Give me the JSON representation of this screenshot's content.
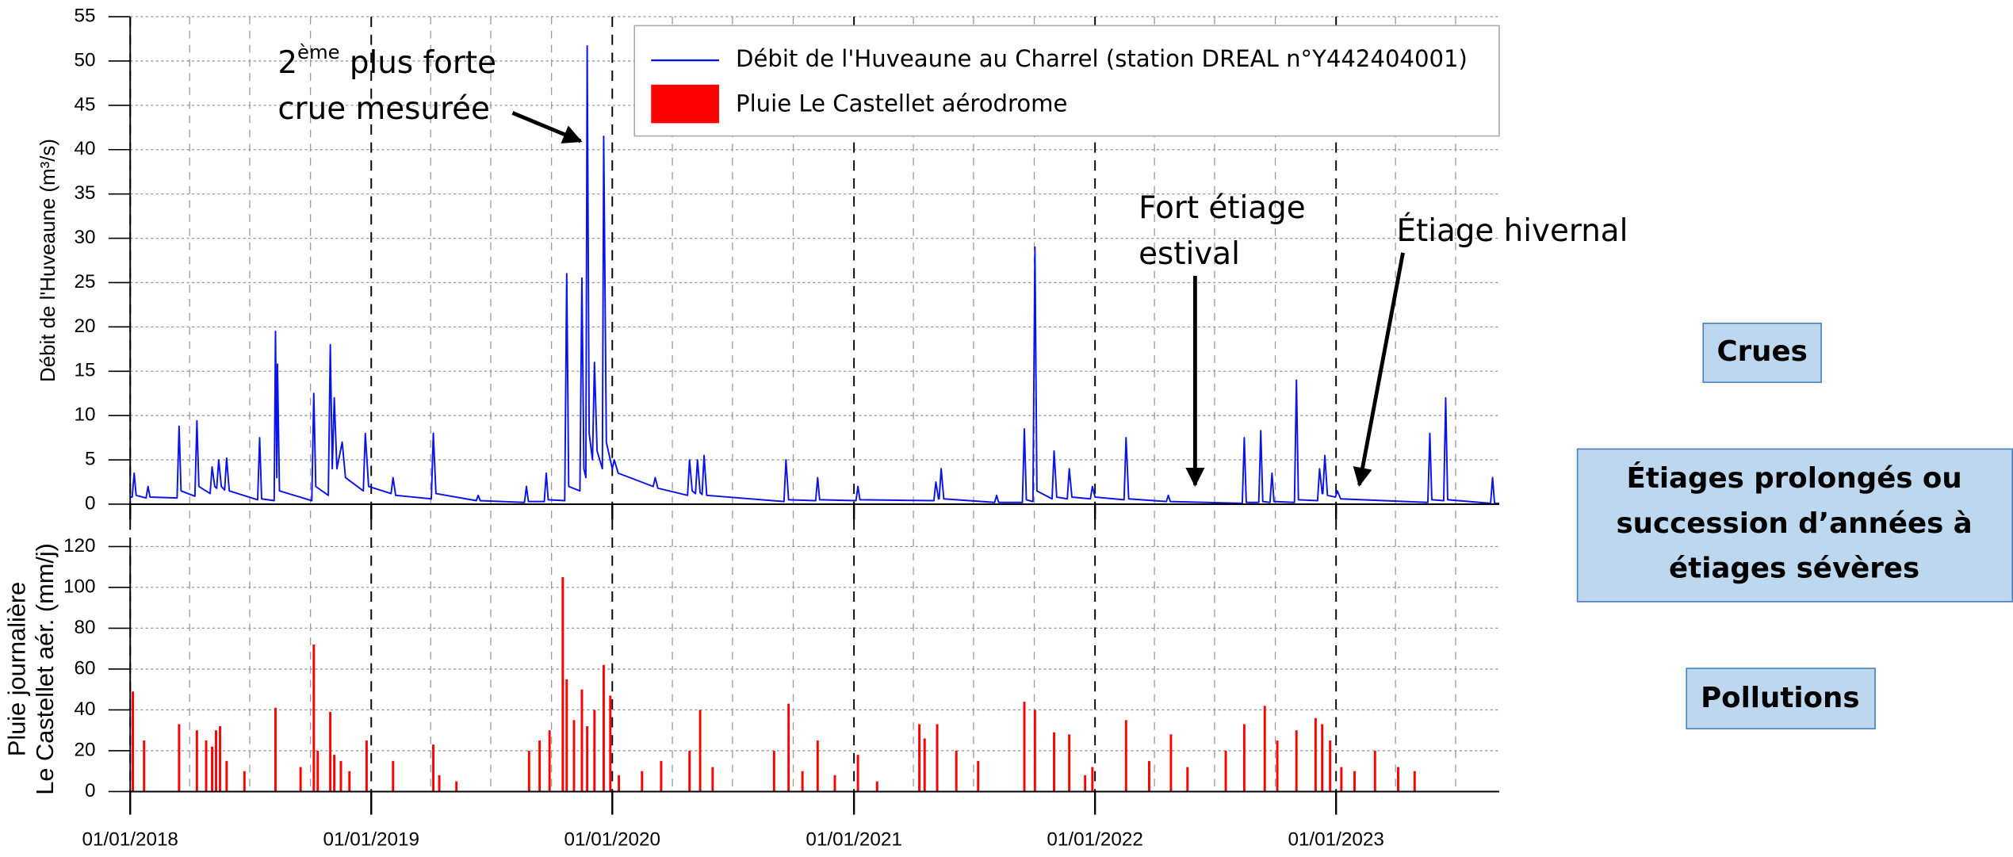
{
  "chart_data": [
    {
      "type": "line",
      "ylabel": "Débit de l'Huveaune (m³/s)",
      "xlim": [
        "2018-01-01",
        "2023-09-05"
      ],
      "ylim": [
        0,
        55
      ],
      "yticks": [
        0,
        5,
        10,
        15,
        20,
        25,
        30,
        35,
        40,
        45,
        50,
        55
      ],
      "grid": true,
      "x": [
        "2018-01-01",
        "2018-01-04",
        "2018-01-07",
        "2018-01-10",
        "2018-01-25",
        "2018-01-28",
        "2018-01-31",
        "2018-03-13",
        "2018-03-16",
        "2018-03-19",
        "2018-04-09",
        "2018-04-12",
        "2018-04-15",
        "2018-05-02",
        "2018-05-05",
        "2018-05-09",
        "2018-05-12",
        "2018-05-15",
        "2018-05-19",
        "2018-05-24",
        "2018-05-27",
        "2018-05-31",
        "2018-07-13",
        "2018-07-16",
        "2018-07-19",
        "2018-08-07",
        "2018-08-09",
        "2018-08-11",
        "2018-08-12",
        "2018-08-15",
        "2018-10-03",
        "2018-10-06",
        "2018-10-09",
        "2018-10-28",
        "2018-10-31",
        "2018-11-03",
        "2018-11-06",
        "2018-11-10",
        "2018-11-18",
        "2018-11-23",
        "2018-12-20",
        "2018-12-23",
        "2018-12-28",
        "2019-01-31",
        "2019-02-03",
        "2019-02-07",
        "2019-04-02",
        "2019-04-05",
        "2019-04-09",
        "2019-06-09",
        "2019-06-12",
        "2019-06-15",
        "2019-08-21",
        "2019-08-24",
        "2019-08-27",
        "2019-09-20",
        "2019-09-23",
        "2019-09-26",
        "2019-10-21",
        "2019-10-24",
        "2019-10-27",
        "2019-11-13",
        "2019-11-16",
        "2019-11-19",
        "2019-11-22",
        "2019-11-24",
        "2019-11-27",
        "2019-12-02",
        "2019-12-05",
        "2019-12-09",
        "2019-12-17",
        "2019-12-19",
        "2019-12-23",
        "2020-01-01",
        "2020-01-04",
        "2020-01-10",
        "2020-03-03",
        "2020-03-06",
        "2020-03-10",
        "2020-04-24",
        "2020-04-27",
        "2020-05-01",
        "2020-05-06",
        "2020-05-09",
        "2020-05-13",
        "2020-05-16",
        "2020-05-19",
        "2020-05-23",
        "2020-09-17",
        "2020-09-20",
        "2020-09-24",
        "2020-11-04",
        "2020-11-07",
        "2020-11-10",
        "2021-01-04",
        "2021-01-07",
        "2021-01-10",
        "2021-05-02",
        "2021-05-05",
        "2021-05-09",
        "2021-05-10",
        "2021-05-13",
        "2021-05-17",
        "2021-08-02",
        "2021-08-05",
        "2021-08-08",
        "2021-09-13",
        "2021-09-16",
        "2021-09-19",
        "2021-09-29",
        "2021-10-02",
        "2021-10-05",
        "2021-10-28",
        "2021-10-31",
        "2021-11-04",
        "2021-11-20",
        "2021-11-23",
        "2021-11-27",
        "2021-12-25",
        "2021-12-28",
        "2022-01-01",
        "2022-02-14",
        "2022-02-17",
        "2022-02-21",
        "2022-04-19",
        "2022-04-22",
        "2022-04-25",
        "2022-08-12",
        "2022-08-15",
        "2022-08-18",
        "2022-09-06",
        "2022-09-09",
        "2022-09-12",
        "2022-09-23",
        "2022-09-26",
        "2022-09-29",
        "2022-10-30",
        "2022-11-02",
        "2022-11-05",
        "2022-12-04",
        "2022-12-07",
        "2022-12-11",
        "2022-12-12",
        "2022-12-15",
        "2022-12-19",
        "2022-12-31",
        "2023-01-03",
        "2023-01-08",
        "2023-05-20",
        "2023-05-23",
        "2023-05-26",
        "2023-06-13",
        "2023-06-16",
        "2023-06-19",
        "2023-08-23",
        "2023-08-26",
        "2023-08-29",
        "2023-09-05"
      ],
      "series": [
        {
          "name": "Débit de l'Huveaune au Charrel (station DREAL n°Y442404001)",
          "color": "#0a14e6",
          "values": [
            0.8,
            0.8,
            3.5,
            1.0,
            0.7,
            2,
            0.8,
            0.7,
            8.8,
            1.5,
            0.9,
            9.4,
            2,
            1.2,
            4.2,
            2,
            1.8,
            5,
            2,
            1.6,
            5.2,
            1.5,
            0.5,
            7.5,
            0.6,
            0.4,
            19.5,
            3,
            15.8,
            1.5,
            0.4,
            12.5,
            2,
            1,
            18,
            4,
            12,
            4,
            7,
            3,
            1.5,
            8,
            2,
            1.2,
            3,
            1,
            0.6,
            8,
            1.2,
            0.4,
            1,
            0.4,
            0.2,
            2,
            0.3,
            0.3,
            3.5,
            0.5,
            0.4,
            26,
            2,
            1.5,
            25.5,
            4,
            3,
            51.7,
            8,
            5,
            16,
            6,
            4,
            41.5,
            7,
            4,
            5,
            3.5,
            2,
            3,
            1.8,
            1,
            5,
            1.5,
            1.2,
            5,
            1.3,
            1.1,
            5.5,
            1,
            0.3,
            5,
            0.5,
            0.4,
            3,
            0.5,
            0.4,
            2,
            0.5,
            0.4,
            2.5,
            0.6,
            0.6,
            4,
            0.6,
            0.2,
            1,
            0.2,
            0.2,
            8.5,
            0.5,
            0.3,
            29,
            1.5,
            0.6,
            6,
            0.8,
            0.6,
            4,
            0.8,
            0.6,
            2,
            0.8,
            0.5,
            7.5,
            0.6,
            0.3,
            1,
            0.3,
            0.1,
            7.5,
            0.2,
            0.2,
            8.3,
            0.3,
            0.2,
            3.5,
            0.3,
            0.2,
            14,
            0.5,
            0.4,
            4,
            1.2,
            1.2,
            5.5,
            1,
            0.8,
            1.5,
            0.6,
            0.2,
            8,
            0.5,
            0.4,
            12,
            0.5,
            0.1,
            3,
            0.1,
            0.1
          ]
        }
      ],
      "annotations": [
        {
          "lines": [
            [
              {
                "text": "2"
              },
              {
                "text": "ème",
                "sup": true
              },
              {
                "text": " plus forte"
              }
            ],
            [
              {
                "text": "crue mesurée"
              }
            ]
          ]
        },
        {
          "lines": [
            [
              {
                "text": "Fort étiage"
              }
            ],
            [
              {
                "text": "estival"
              }
            ]
          ]
        },
        {
          "lines": [
            [
              {
                "text": "Étiage hivernal"
              }
            ]
          ]
        }
      ]
    },
    {
      "type": "bar",
      "ylabel": [
        "Pluie journalière",
        "Le Castellet aér. (mm/j)"
      ],
      "xlim": [
        "2018-01-01",
        "2023-09-05"
      ],
      "ylim": [
        0,
        120
      ],
      "yticks": [
        0,
        20,
        40,
        60,
        80,
        100,
        120
      ],
      "grid": true,
      "xticks": [
        {
          "value": "2018-01-01",
          "label": "01/01/2018"
        },
        {
          "value": "2019-01-01",
          "label": "01/01/2019"
        },
        {
          "value": "2020-01-01",
          "label": "01/01/2020"
        },
        {
          "value": "2021-01-01",
          "label": "01/01/2021"
        },
        {
          "value": "2022-01-01",
          "label": "01/01/2022"
        },
        {
          "value": "2023-01-01",
          "label": "01/01/2023"
        }
      ],
      "xticks_minor": [
        "2018-04-01",
        "2018-07-01",
        "2018-10-01",
        "2019-04-01",
        "2019-07-01",
        "2019-10-01",
        "2020-04-01",
        "2020-07-01",
        "2020-10-01",
        "2021-04-01",
        "2021-07-01",
        "2021-10-01",
        "2022-04-01",
        "2022-07-01",
        "2022-10-01",
        "2023-04-01",
        "2023-07-01"
      ],
      "x": [
        "2018-01-05",
        "2018-01-22",
        "2018-03-16",
        "2018-04-12",
        "2018-04-26",
        "2018-05-05",
        "2018-05-11",
        "2018-05-17",
        "2018-05-27",
        "2018-06-23",
        "2018-08-09",
        "2018-09-16",
        "2018-10-06",
        "2018-10-12",
        "2018-10-31",
        "2018-11-06",
        "2018-11-16",
        "2018-11-29",
        "2018-12-25",
        "2019-02-03",
        "2019-04-05",
        "2019-04-14",
        "2019-05-10",
        "2019-08-28",
        "2019-09-13",
        "2019-09-28",
        "2019-10-18",
        "2019-10-24",
        "2019-11-04",
        "2019-11-16",
        "2019-11-24",
        "2019-12-05",
        "2019-12-19",
        "2019-12-29",
        "2020-01-11",
        "2020-02-15",
        "2020-03-15",
        "2020-04-27",
        "2020-05-13",
        "2020-06-01",
        "2020-09-02",
        "2020-09-24",
        "2020-10-15",
        "2020-11-07",
        "2020-12-03",
        "2021-01-07",
        "2021-02-05",
        "2021-04-10",
        "2021-04-18",
        "2021-05-07",
        "2021-06-05",
        "2021-07-08",
        "2021-09-16",
        "2021-10-02",
        "2021-10-31",
        "2021-11-23",
        "2021-12-17",
        "2021-12-28",
        "2022-02-17",
        "2022-03-24",
        "2022-04-26",
        "2022-05-21",
        "2022-07-18",
        "2022-08-15",
        "2022-09-15",
        "2022-10-04",
        "2022-11-02",
        "2022-12-01",
        "2022-12-11",
        "2022-12-23",
        "2023-01-09",
        "2023-01-29",
        "2023-03-01",
        "2023-04-05",
        "2023-04-30"
      ],
      "series": [
        {
          "name": "Pluie Le Castellet aérodrome",
          "color": "#ff0000",
          "values": [
            49,
            25,
            33,
            30,
            25,
            22,
            30,
            32,
            15,
            10,
            41,
            12,
            72,
            20,
            39,
            18,
            15,
            10,
            25,
            15,
            23,
            8,
            5,
            20,
            25,
            30,
            105,
            55,
            35,
            50,
            32,
            40,
            62,
            47,
            8,
            10,
            15,
            20,
            40,
            12,
            20,
            43,
            10,
            25,
            8,
            18,
            5,
            33,
            26,
            33,
            20,
            15,
            44,
            40,
            29,
            28,
            8,
            12,
            35,
            15,
            28,
            12,
            20,
            33,
            42,
            25,
            30,
            36,
            33,
            25,
            12,
            10,
            20,
            12,
            10
          ]
        }
      ]
    }
  ],
  "side_boxes": [
    {
      "lines": [
        "Crues"
      ]
    },
    {
      "lines": [
        "Étiages prolongés ou",
        "succession d’années à",
        "étiages sévères"
      ]
    },
    {
      "lines": [
        "Pollutions"
      ]
    }
  ]
}
